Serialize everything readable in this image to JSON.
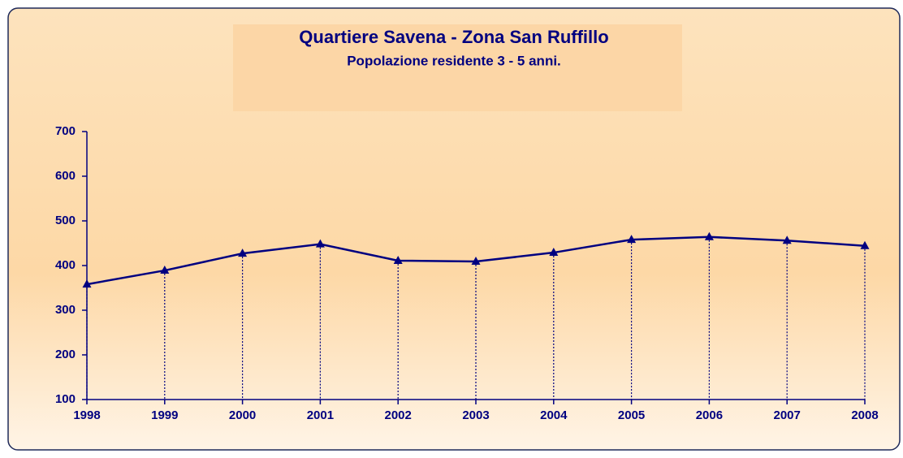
{
  "chart_data": {
    "type": "line",
    "title": "Quartiere Savena - Zona San Ruffillo",
    "subtitle": "Popolazione residente 3 - 5 anni.",
    "categories": [
      "1998",
      "1999",
      "2000",
      "2001",
      "2002",
      "2003",
      "2004",
      "2005",
      "2006",
      "2007",
      "2008"
    ],
    "series": [
      {
        "name": "Popolazione residente 3 - 5 anni",
        "color": "#000080",
        "values": [
          358,
          389,
          427,
          448,
          411,
          409,
          429,
          458,
          464,
          456,
          444
        ]
      }
    ],
    "ylim": [
      100,
      700
    ],
    "yticks": [
      100,
      200,
      300,
      400,
      500,
      600,
      700
    ],
    "grid": false,
    "drop_lines": true
  }
}
